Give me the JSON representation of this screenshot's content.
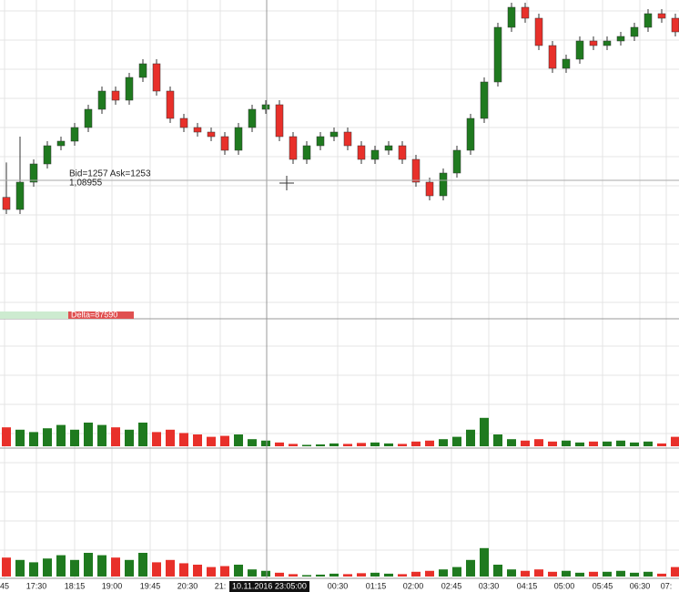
{
  "chart_data": {
    "type": "candlestick",
    "open": [
      1.089,
      1.0886,
      1.0895,
      1.0901,
      1.0907,
      1.09085,
      1.0913,
      1.0919,
      1.0925,
      1.0922,
      1.09295,
      1.0934,
      1.0925,
      1.0916,
      1.0913,
      1.09115,
      1.091,
      1.09055,
      1.0913,
      1.0919,
      1.09205,
      1.091,
      1.09025,
      1.0907,
      1.091,
      1.09115,
      1.0907,
      1.09025,
      1.09055,
      1.0907,
      1.09025,
      1.0895,
      1.08905,
      1.0898,
      1.09055,
      1.0916,
      1.0928,
      1.0946,
      1.09526,
      1.0949,
      1.094,
      1.09325,
      1.09355,
      1.09415,
      1.094,
      1.09415,
      1.0943,
      1.0946,
      1.09505,
      1.0949
    ],
    "high": [
      1.09015,
      1.091,
      1.09025,
      1.09085,
      1.091,
      1.09145,
      1.09205,
      1.09265,
      1.09265,
      1.0931,
      1.09355,
      1.09355,
      1.09265,
      1.09175,
      1.09145,
      1.0913,
      1.09115,
      1.09145,
      1.09205,
      1.0922,
      1.0922,
      1.09115,
      1.09085,
      1.09115,
      1.0913,
      1.0913,
      1.09085,
      1.0907,
      1.09085,
      1.09085,
      1.0904,
      1.08965,
      1.08995,
      1.0907,
      1.09175,
      1.09295,
      1.09475,
      1.09541,
      1.09541,
      1.09505,
      1.09415,
      1.0937,
      1.0943,
      1.0943,
      1.0943,
      1.09445,
      1.09475,
      1.0952,
      1.0952,
      1.09505
    ],
    "low": [
      1.08845,
      1.08845,
      1.08935,
      1.08995,
      1.09055,
      1.0907,
      1.09115,
      1.09175,
      1.09205,
      1.09205,
      1.0928,
      1.09235,
      1.09145,
      1.09115,
      1.091,
      1.09085,
      1.0904,
      1.0904,
      1.09115,
      1.09175,
      1.09085,
      1.0901,
      1.0901,
      1.09055,
      1.09085,
      1.09055,
      1.0901,
      1.0901,
      1.0904,
      1.0901,
      1.08935,
      1.0889,
      1.0889,
      1.08965,
      1.0904,
      1.09145,
      1.09265,
      1.09445,
      1.09475,
      1.09385,
      1.0931,
      1.0931,
      1.0934,
      1.09385,
      1.09385,
      1.094,
      1.09415,
      1.09445,
      1.09475,
      1.0943
    ],
    "close": [
      1.0886,
      1.0895,
      1.0901,
      1.0907,
      1.09085,
      1.0913,
      1.0919,
      1.0925,
      1.0922,
      1.09295,
      1.0934,
      1.0925,
      1.0916,
      1.0913,
      1.09115,
      1.091,
      1.09055,
      1.0913,
      1.0919,
      1.09205,
      1.091,
      1.09025,
      1.0907,
      1.091,
      1.09115,
      1.0907,
      1.09025,
      1.09055,
      1.0907,
      1.09025,
      1.0895,
      1.08905,
      1.0898,
      1.09055,
      1.0916,
      1.0928,
      1.0946,
      1.09526,
      1.0949,
      1.094,
      1.09325,
      1.09355,
      1.09415,
      1.094,
      1.09415,
      1.0943,
      1.0946,
      1.09505,
      1.0949,
      1.09445
    ],
    "ylim": [
      1.085,
      1.0955
    ],
    "volume": [
      40,
      35,
      30,
      38,
      45,
      35,
      50,
      45,
      40,
      35,
      50,
      30,
      35,
      28,
      25,
      20,
      22,
      25,
      15,
      12,
      8,
      5,
      3,
      4,
      6,
      5,
      7,
      8,
      6,
      5,
      10,
      12,
      15,
      20,
      35,
      60,
      25,
      15,
      12,
      15,
      10,
      12,
      8,
      10,
      10,
      12,
      8,
      10,
      6,
      20
    ],
    "volume_ylim": [
      0,
      250
    ],
    "up_color": "#1f7a1f",
    "down_color": "#e8302a",
    "crosshair_label": "Bid=1257 Ask=1253",
    "crosshair_price": "1,08955",
    "delta_label": "Delta=87590",
    "time_labels": [
      "45",
      "17:30",
      "18:15",
      "19:00",
      "19:45",
      "20:30",
      "21:",
      "10.11.2016 23:05:00",
      "00:30",
      "01:15",
      "02:00",
      "02:45",
      "03:30",
      "04:15",
      "05:00",
      "05:45",
      "06:30",
      "07:"
    ]
  }
}
